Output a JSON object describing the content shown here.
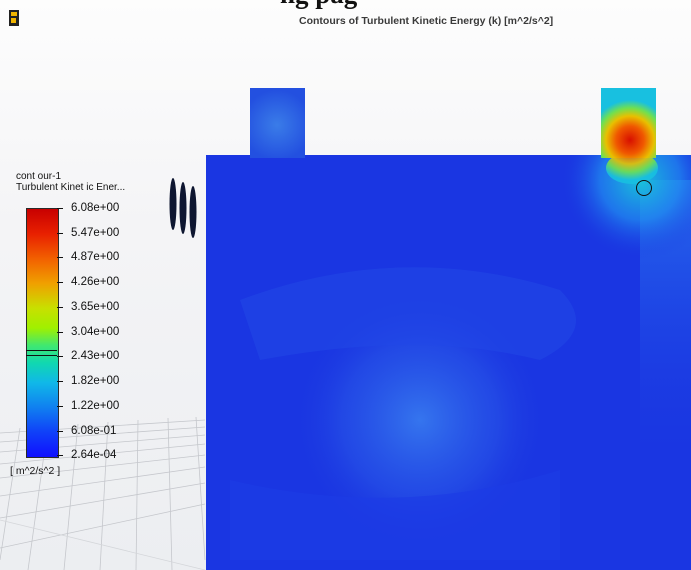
{
  "header": {
    "top_cropped_heading": "ng  pag",
    "app_logo_icon": "fluent-logo-icon"
  },
  "plot": {
    "title": "Contours of Turbulent Kinetic Energy (k) [m^2/s^2]"
  },
  "legend": {
    "contour_name": "cont our-1",
    "variable": "Turbulent  Kinet ic Ener...",
    "ticks": [
      "6.08e+00",
      "5.47e+00",
      "4.87e+00",
      "4.26e+00",
      "3.65e+00",
      "3.04e+00",
      "2.43e+00",
      "1.82e+00",
      "1.22e+00",
      "6.08e-01",
      "2.64e-04"
    ],
    "unit": "[ m^2/s^2 ]",
    "colors": {
      "max": "#c80000",
      "mid": "#a0f000",
      "min": "#1010ff"
    }
  },
  "scene": {
    "background_color": "#1a33e0",
    "icons": [
      "floor-grid",
      "axis-triad-icon",
      "probe-circle-icon"
    ]
  }
}
